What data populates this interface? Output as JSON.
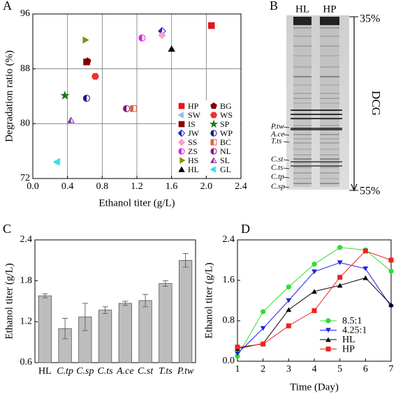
{
  "chart_data": [
    {
      "type": "scatter",
      "panel_label": "A",
      "xlabel": "Ethanol titer (g/L)",
      "ylabel": "Degradation ratio (%)",
      "xlim": [
        0,
        2.4
      ],
      "ylim": [
        72,
        96
      ],
      "xticks": [
        {
          "value": 0,
          "label": "0.0"
        },
        0.4,
        0.8,
        1.2,
        1.6,
        {
          "value": 2,
          "label": "2.0"
        },
        2.4
      ],
      "yticks": [
        72,
        80,
        88,
        96
      ],
      "grid": true,
      "legend_columns": 2,
      "series": [
        {
          "name": "HP",
          "color": "#e8141b",
          "marker": "square",
          "x": [
            2.06
          ],
          "values": [
            94.3
          ]
        },
        {
          "name": "SW",
          "color": "#8fbde8",
          "marker": "tri-left",
          "x": [
            0.29
          ],
          "values": [
            74.5
          ]
        },
        {
          "name": "IS",
          "color": "#8b0000",
          "marker": "square",
          "x": [
            0.62
          ],
          "values": [
            89.0
          ]
        },
        {
          "name": "JW",
          "color": "#1f1fd0",
          "marker": "diamond-half",
          "x": [
            1.49
          ],
          "values": [
            93.5
          ]
        },
        {
          "name": "SS",
          "color": "#f5a3c0",
          "marker": "diamond",
          "x": [
            1.49
          ],
          "values": [
            92.9
          ]
        },
        {
          "name": "ZS",
          "color": "#e020e0",
          "marker": "circle-half",
          "x": [
            1.26
          ],
          "values": [
            92.5
          ]
        },
        {
          "name": "HS",
          "color": "#8c8c14",
          "marker": "tri-right",
          "x": [
            0.6
          ],
          "values": [
            92.2
          ]
        },
        {
          "name": "HL",
          "color": "#000000",
          "marker": "tri-up",
          "x": [
            1.6
          ],
          "values": [
            90.9
          ]
        },
        {
          "name": "BG",
          "color": "#800000",
          "marker": "pentagon",
          "x": [
            0.63
          ],
          "values": [
            89.1
          ]
        },
        {
          "name": "WS",
          "color": "#f03030",
          "marker": "hexagon",
          "x": [
            0.72
          ],
          "values": [
            86.9
          ]
        },
        {
          "name": "SP",
          "color": "#1a7a1a",
          "marker": "star",
          "x": [
            0.37
          ],
          "values": [
            84.1
          ]
        },
        {
          "name": "WP",
          "color": "#1a1a80",
          "marker": "circle-half",
          "x": [
            0.62
          ],
          "values": [
            83.7
          ]
        },
        {
          "name": "BC",
          "color": "#e06040",
          "marker": "square-half",
          "x": [
            1.16
          ],
          "values": [
            82.2
          ]
        },
        {
          "name": "NL",
          "color": "#801a80",
          "marker": "circle-half",
          "x": [
            1.08
          ],
          "values": [
            82.2
          ]
        },
        {
          "name": "SL",
          "color": "#8030a0",
          "marker": "tri-up-half",
          "x": [
            0.44
          ],
          "values": [
            80.5
          ]
        },
        {
          "name": "GL",
          "color": "#30e0f0",
          "marker": "tri-left",
          "x": [
            0.28
          ],
          "values": [
            74.4
          ]
        }
      ]
    },
    {
      "type": "gel",
      "panel_label": "B",
      "lanes": [
        "HL",
        "HP"
      ],
      "top_label": "35%",
      "bottom_label": "55%",
      "gradient_label": "DCG",
      "band_labels": [
        "P.tw",
        "A.ce",
        "T.ts",
        "C.st",
        "C.ts",
        "C.tp",
        "C.sp"
      ]
    },
    {
      "type": "bar",
      "panel_label": "C",
      "ylabel": "Ethanol titer (g/L)",
      "categories": [
        "HL",
        "C.tp",
        "C.sp",
        "C.ts",
        "A.ce",
        "C.st",
        "T.ts",
        "P.tw"
      ],
      "values": [
        1.58,
        1.1,
        1.27,
        1.37,
        1.47,
        1.51,
        1.76,
        2.1
      ],
      "errors": [
        0.03,
        0.15,
        0.2,
        0.05,
        0.03,
        0.09,
        0.04,
        0.1
      ],
      "color": "#bdbdbd",
      "ylim": [
        0.6,
        2.4
      ],
      "yticks": [
        0.6,
        1.2,
        1.8,
        2.4
      ]
    },
    {
      "type": "line",
      "panel_label": "D",
      "xlabel": "Time (Day)",
      "ylabel": "Ethanol titer (g/L)",
      "x": [
        1,
        2,
        3,
        4,
        5,
        6,
        7
      ],
      "xlim": [
        1,
        7
      ],
      "xticks": [
        1,
        2,
        3,
        4,
        5,
        6,
        7
      ],
      "ylim": [
        0,
        2.4
      ],
      "yticks": [
        {
          "value": 0,
          "label": "0.0"
        },
        0.8,
        1.6,
        2.4
      ],
      "series": [
        {
          "name": "8.5:1",
          "color": "#33dd33",
          "marker": "circle",
          "values": [
            0.1,
            0.98,
            1.47,
            1.92,
            2.25,
            2.2,
            1.78
          ]
        },
        {
          "name": "4.25:1",
          "color": "#2222dd",
          "marker": "tri-down",
          "values": [
            0.15,
            0.65,
            1.2,
            1.77,
            1.95,
            1.83,
            1.08
          ]
        },
        {
          "name": "HL",
          "color": "#000000",
          "marker": "tri-up",
          "values": [
            0.25,
            0.35,
            1.02,
            1.38,
            1.5,
            1.65,
            1.12
          ]
        },
        {
          "name": "HP",
          "color": "#ee2222",
          "marker": "square",
          "values": [
            0.28,
            0.34,
            0.7,
            1.0,
            1.66,
            2.18,
            2.0
          ]
        }
      ]
    }
  ]
}
